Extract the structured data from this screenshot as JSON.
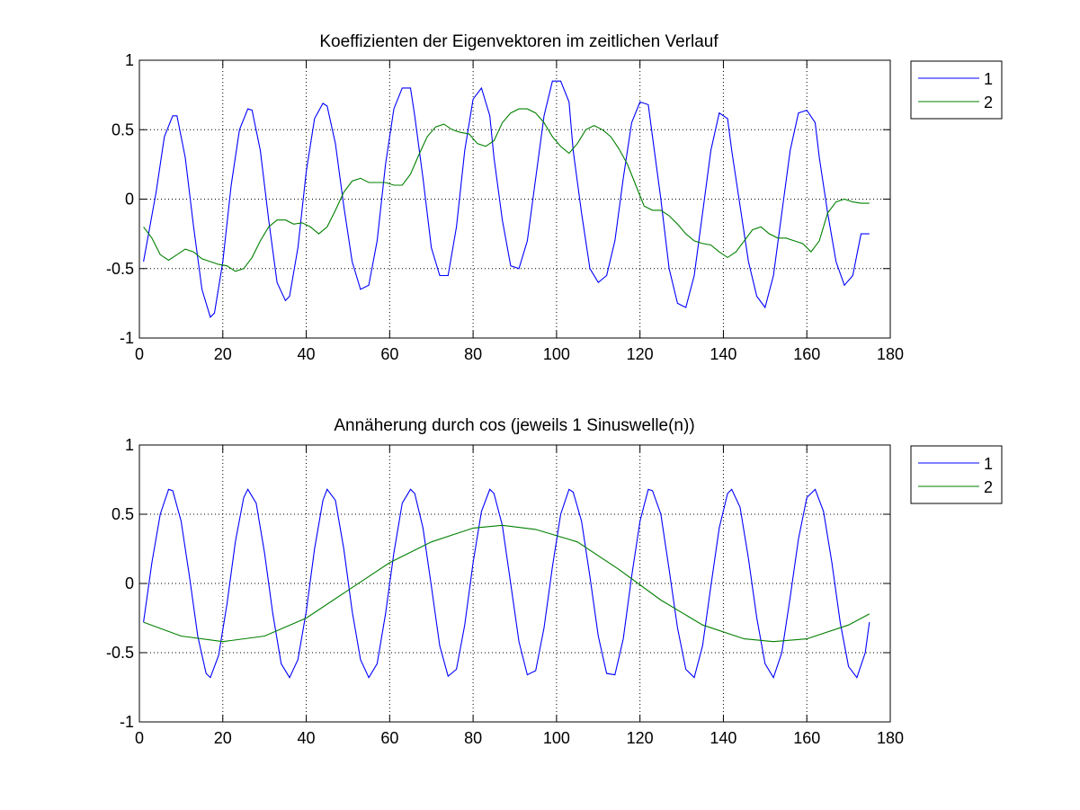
{
  "chart_data": [
    {
      "type": "line",
      "title": "Koeffizienten der Eigenvektoren im zeitlichen Verlauf",
      "xlabel": "",
      "ylabel": "",
      "xlim": [
        0,
        180
      ],
      "ylim": [
        -1,
        1
      ],
      "xticks": [
        "0",
        "20",
        "40",
        "60",
        "80",
        "100",
        "120",
        "140",
        "160",
        "180"
      ],
      "yticks": [
        "1",
        "0.5",
        "0",
        "-0.5",
        "-1"
      ],
      "grid": true,
      "legend": "outside-top-right",
      "series": [
        {
          "name": "1",
          "color": "#0000ff",
          "x": [
            1,
            4,
            6,
            8,
            9,
            11,
            13,
            15,
            17,
            18,
            20,
            22,
            24,
            26,
            27,
            29,
            31,
            33,
            35,
            36,
            38,
            40,
            42,
            44,
            45,
            47,
            49,
            51,
            53,
            55,
            57,
            59,
            61,
            63,
            65,
            66,
            68,
            70,
            72,
            74,
            76,
            78,
            80,
            82,
            84,
            85,
            87,
            89,
            91,
            93,
            95,
            97,
            99,
            101,
            103,
            104,
            106,
            108,
            110,
            112,
            114,
            116,
            118,
            120,
            122,
            123,
            125,
            127,
            129,
            131,
            133,
            135,
            137,
            139,
            141,
            142,
            144,
            146,
            148,
            150,
            152,
            154,
            156,
            158,
            160,
            162,
            163,
            165,
            167,
            169,
            171,
            173,
            175
          ],
          "y": [
            -0.45,
            0.05,
            0.45,
            0.6,
            0.6,
            0.3,
            -0.2,
            -0.65,
            -0.85,
            -0.82,
            -0.45,
            0.1,
            0.5,
            0.65,
            0.64,
            0.35,
            -0.15,
            -0.6,
            -0.73,
            -0.7,
            -0.35,
            0.2,
            0.58,
            0.69,
            0.67,
            0.4,
            -0.05,
            -0.45,
            -0.65,
            -0.62,
            -0.3,
            0.25,
            0.65,
            0.8,
            0.8,
            0.6,
            0.15,
            -0.35,
            -0.55,
            -0.55,
            -0.2,
            0.35,
            0.72,
            0.8,
            0.6,
            0.3,
            -0.15,
            -0.48,
            -0.5,
            -0.3,
            0.15,
            0.6,
            0.85,
            0.85,
            0.7,
            0.35,
            -0.1,
            -0.5,
            -0.6,
            -0.55,
            -0.3,
            0.15,
            0.55,
            0.7,
            0.68,
            0.45,
            0.0,
            -0.5,
            -0.75,
            -0.78,
            -0.55,
            -0.1,
            0.35,
            0.62,
            0.58,
            0.35,
            -0.05,
            -0.45,
            -0.7,
            -0.78,
            -0.55,
            -0.1,
            0.35,
            0.62,
            0.64,
            0.55,
            0.3,
            -0.1,
            -0.45,
            -0.62,
            -0.55,
            -0.25,
            -0.25
          ]
        },
        {
          "name": "2",
          "color": "#008000",
          "x": [
            1,
            3,
            5,
            7,
            9,
            11,
            13,
            15,
            17,
            19,
            21,
            23,
            25,
            27,
            29,
            31,
            33,
            35,
            37,
            39,
            41,
            43,
            45,
            47,
            49,
            51,
            53,
            55,
            57,
            59,
            61,
            63,
            65,
            67,
            69,
            71,
            73,
            75,
            77,
            79,
            81,
            83,
            85,
            87,
            89,
            91,
            93,
            95,
            97,
            99,
            101,
            103,
            105,
            107,
            109,
            111,
            113,
            115,
            117,
            119,
            121,
            123,
            125,
            127,
            129,
            131,
            133,
            135,
            137,
            139,
            141,
            143,
            145,
            147,
            149,
            151,
            153,
            155,
            157,
            159,
            161,
            163,
            165,
            167,
            169,
            171,
            173,
            175
          ],
          "y": [
            -0.2,
            -0.28,
            -0.4,
            -0.44,
            -0.4,
            -0.36,
            -0.38,
            -0.43,
            -0.45,
            -0.47,
            -0.48,
            -0.52,
            -0.5,
            -0.42,
            -0.3,
            -0.2,
            -0.15,
            -0.15,
            -0.18,
            -0.17,
            -0.2,
            -0.25,
            -0.2,
            -0.08,
            0.05,
            0.13,
            0.15,
            0.12,
            0.12,
            0.12,
            0.1,
            0.1,
            0.18,
            0.32,
            0.45,
            0.52,
            0.54,
            0.5,
            0.48,
            0.47,
            0.4,
            0.38,
            0.42,
            0.55,
            0.62,
            0.65,
            0.65,
            0.62,
            0.55,
            0.45,
            0.38,
            0.33,
            0.4,
            0.5,
            0.53,
            0.5,
            0.45,
            0.36,
            0.25,
            0.1,
            -0.05,
            -0.08,
            -0.08,
            -0.12,
            -0.18,
            -0.25,
            -0.3,
            -0.32,
            -0.33,
            -0.38,
            -0.42,
            -0.38,
            -0.3,
            -0.22,
            -0.2,
            -0.25,
            -0.28,
            -0.28,
            -0.3,
            -0.32,
            -0.38,
            -0.3,
            -0.1,
            -0.02,
            0.0,
            -0.02,
            -0.03,
            -0.03
          ]
        }
      ]
    },
    {
      "type": "line",
      "title": "Annäherung durch cos (jeweils 1 Sinuswelle(n))",
      "xlabel": "",
      "ylabel": "",
      "xlim": [
        0,
        180
      ],
      "ylim": [
        -1,
        1
      ],
      "xticks": [
        "0",
        "20",
        "40",
        "60",
        "80",
        "100",
        "120",
        "140",
        "160",
        "180"
      ],
      "yticks": [
        "1",
        "0.5",
        "0",
        "-0.5",
        "-1"
      ],
      "grid": true,
      "legend": "outside-top-right",
      "series": [
        {
          "name": "1",
          "color": "#0000ff",
          "x": [
            1,
            3,
            5,
            7,
            8,
            10,
            12,
            14,
            16,
            17,
            19,
            21,
            23,
            25,
            26,
            28,
            30,
            32,
            34,
            36,
            38,
            40,
            42,
            44,
            45,
            47,
            49,
            51,
            53,
            55,
            57,
            59,
            61,
            63,
            65,
            66,
            68,
            70,
            72,
            74,
            76,
            78,
            80,
            82,
            84,
            85,
            87,
            89,
            91,
            93,
            95,
            97,
            99,
            101,
            103,
            104,
            106,
            108,
            110,
            112,
            114,
            116,
            118,
            120,
            122,
            123,
            125,
            127,
            129,
            131,
            133,
            135,
            137,
            139,
            141,
            142,
            144,
            146,
            148,
            150,
            152,
            154,
            156,
            158,
            160,
            162,
            164,
            166,
            168,
            170,
            172,
            174,
            175
          ],
          "y": [
            -0.28,
            0.15,
            0.5,
            0.68,
            0.67,
            0.45,
            0.05,
            -0.38,
            -0.65,
            -0.68,
            -0.52,
            -0.15,
            0.3,
            0.62,
            0.68,
            0.58,
            0.22,
            -0.22,
            -0.58,
            -0.68,
            -0.55,
            -0.2,
            0.25,
            0.6,
            0.68,
            0.6,
            0.25,
            -0.2,
            -0.55,
            -0.68,
            -0.58,
            -0.22,
            0.22,
            0.58,
            0.68,
            0.65,
            0.4,
            -0.02,
            -0.45,
            -0.67,
            -0.62,
            -0.3,
            0.15,
            0.52,
            0.68,
            0.65,
            0.42,
            0.0,
            -0.42,
            -0.66,
            -0.63,
            -0.32,
            0.12,
            0.5,
            0.68,
            0.66,
            0.45,
            0.05,
            -0.38,
            -0.65,
            -0.66,
            -0.4,
            0.05,
            0.45,
            0.68,
            0.67,
            0.5,
            0.1,
            -0.32,
            -0.62,
            -0.68,
            -0.45,
            -0.02,
            0.4,
            0.65,
            0.68,
            0.55,
            0.18,
            -0.25,
            -0.58,
            -0.68,
            -0.5,
            -0.1,
            0.32,
            0.62,
            0.68,
            0.52,
            0.15,
            -0.28,
            -0.6,
            -0.68,
            -0.5,
            -0.28
          ]
        },
        {
          "name": "2",
          "color": "#008000",
          "x": [
            1,
            10,
            20,
            30,
            40,
            50,
            60,
            70,
            80,
            87,
            95,
            105,
            115,
            125,
            135,
            145,
            152,
            160,
            170,
            175
          ],
          "y": [
            -0.28,
            -0.38,
            -0.42,
            -0.38,
            -0.25,
            -0.05,
            0.15,
            0.3,
            0.4,
            0.42,
            0.39,
            0.3,
            0.1,
            -0.12,
            -0.3,
            -0.4,
            -0.42,
            -0.4,
            -0.3,
            -0.22
          ]
        }
      ]
    }
  ]
}
